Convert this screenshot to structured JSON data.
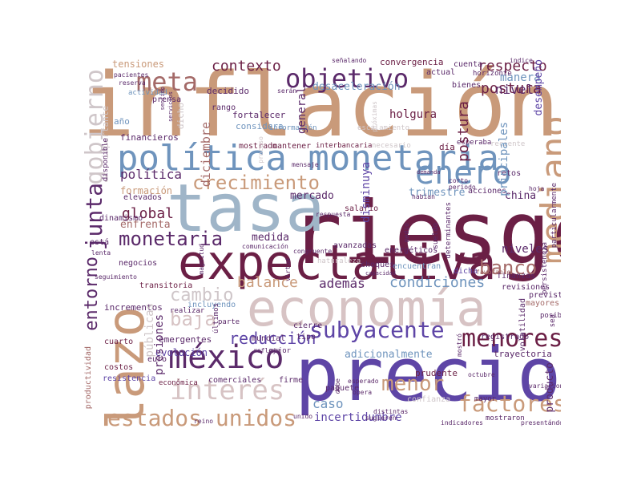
{
  "colors": {
    "tan": "#c99a7a",
    "darkred": "#6b1f45",
    "plum": "#5b2a6a",
    "purple": "#5e45a6",
    "steel": "#6f94bd",
    "slate": "#9fb5c8",
    "grey": "#cfc6c9",
    "pink": "#d7c3c4",
    "rose": "#a46a68"
  },
  "words": {
    "inflacion": "inflación",
    "riesgo": "riesgo",
    "precios": "precios",
    "tasa": "tasa",
    "expectativa": "expectativa",
    "economia": "economía",
    "politica_monetaria": "política monetaria",
    "plazo": "plazo",
    "mediano": "mediano",
    "objetivo": "objetivo",
    "enero": "enero",
    "mexico": "méxico",
    "interes": "interés",
    "estados_unidos": "estados unidos",
    "subyacente": "subyacente",
    "menores": "menores",
    "factores": "factores",
    "menor": "menor",
    "crecimiento": "crecimiento",
    "monetaria": "monetaria",
    "junta": "junta",
    "meta": "meta",
    "contexto": "contexto",
    "gobierno": "gobierno",
    "respecto": "respecto",
    "postura": "postura",
    "banco": "banco",
    "cambio": "cambio",
    "baja": "baja",
    "reduccion": "reducción",
    "entorno": "entorno",
    "balance": "balance",
    "condiciones": "condiciones",
    "ademas": "además",
    "global": "global",
    "politica": "política",
    "caso": "caso",
    "incertidumbre": "incertidumbre",
    "adicionalmente": "adicionalmente",
    "desaceleracion": "desaceleración",
    "holgura": "holgura",
    "nivel": "nivel",
    "manera": "manera",
    "niveles": "niveles",
    "trimestre": "trimestre",
    "mercado": "mercado",
    "medida": "medida",
    "enfrenta": "enfrenta",
    "formacion": "formación",
    "tensiones": "tensiones",
    "convergencia": "convergencia",
    "desempeno": "desempeño",
    "principales": "principales",
    "china": "china",
    "diciembre": "diciembre",
    "general": "general",
    "disminuya": "disminuya",
    "publicas": "públicas",
    "presiones": "presiones",
    "evolucion": "evolución",
    "producto": "producto",
    "trayectoria": "trayectoria",
    "mayor": "mayor",
    "financieros": "financieros",
    "fortalecer": "fortalecer",
    "considera": "considera",
    "decidido": "decidido",
    "rango": "rango",
    "actividad": "actividad",
    "importante": "importante",
    "ano": "año",
    "dicho": "dicho",
    "esta": "está",
    "incrementos": "incrementos",
    "transitoria": "transitoria",
    "costos": "costos",
    "resistencia": "resistencia",
    "productividad": "productividad",
    "cuarto": "cuarto",
    "emergentes": "emergentes",
    "comerciales": "comerciales",
    "incluyendo": "incluyendo",
    "mundial": "mundial",
    "cierre": "cierre",
    "tipo": "tipo",
    "parte": "parte",
    "ultimos": "últimos",
    "paquete": "paquete",
    "prudente": "prudente",
    "registrado": "registrado",
    "revisiones": "revisiones",
    "prevista": "prevista",
    "mayores": "mayores",
    "posible": "posible",
    "sea": "sea",
    "finanzas": "finanzas",
    "dicha": "dicha",
    "favorable": "favorable",
    "octubre": "octubre",
    "volatilidad": "volatilidad",
    "acciones": "acciones",
    "hoja": "hoja",
    "retos": "retos",
    "actual": "actual",
    "bienes": "bienes",
    "cuenta": "cuenta",
    "horizonte": "horizonte",
    "elevados": "elevados",
    "dinamismo": "dinamismo",
    "negocios": "negocios",
    "seguimiento": "seguimiento",
    "mostrado": "mostrado",
    "mantener": "mantener",
    "avanzadas": "avanzadas",
    "salario": "salario",
    "energeticos": "energéticos",
    "encuentran": "encuentran",
    "choques": "choques",
    "habian": "habían",
    "dia": "día",
    "esperaba": "esperaba",
    "reciente": "reciente",
    "persistencia": "persistencia",
    "particularmente": "particularmente",
    "debe": "debe",
    "pacientes": "pacientes",
    "reserva": "reserva",
    "prensa": "prensa",
    "sentido": "sentido",
    "servicios": "servicios",
    "euro": "euro",
    "realizar": "realizar",
    "economica": "económica",
    "firme": "firme",
    "mejor": "mejor",
    "refleja": "refleja",
    "confianza": "confianza",
    "mostraron": "mostraron",
    "indicadores": "indicadores",
    "presentandose": "presentándose",
    "sugieren": "sugieren",
    "distintas": "distintas",
    "opera": "opera",
    "esperado": "esperado",
    "mostro": "mostró",
    "variaciones": "variaciones",
    "sueldo": "sueldo",
    "unido": "unido",
    "reino": "reino",
    "medio": "medio",
    "lenta": "lenta",
    "naturaleza": "naturaleza",
    "determinantes": "determinantes",
    "proceso": "proceso",
    "comunicacion": "comunicación",
    "informacion": "información",
    "escalamiento": "escalamiento",
    "proximas": "próximas",
    "disponible": "disponible",
    "magnitud": "magnitud",
    "necesario": "necesario",
    "senalando": "señalando",
    "indice": "índice",
    "serán": "serán",
    "demanda": "demanda",
    "corto": "corto",
    "periodo": "periodo",
    "mensaje": "mensaje",
    "congruente": "congruente",
    "respuesta": "respuesta",
    "virtud": "virtud",
    "capacidad": "capacidad",
    "interbancaria": "interbancaria"
  }
}
